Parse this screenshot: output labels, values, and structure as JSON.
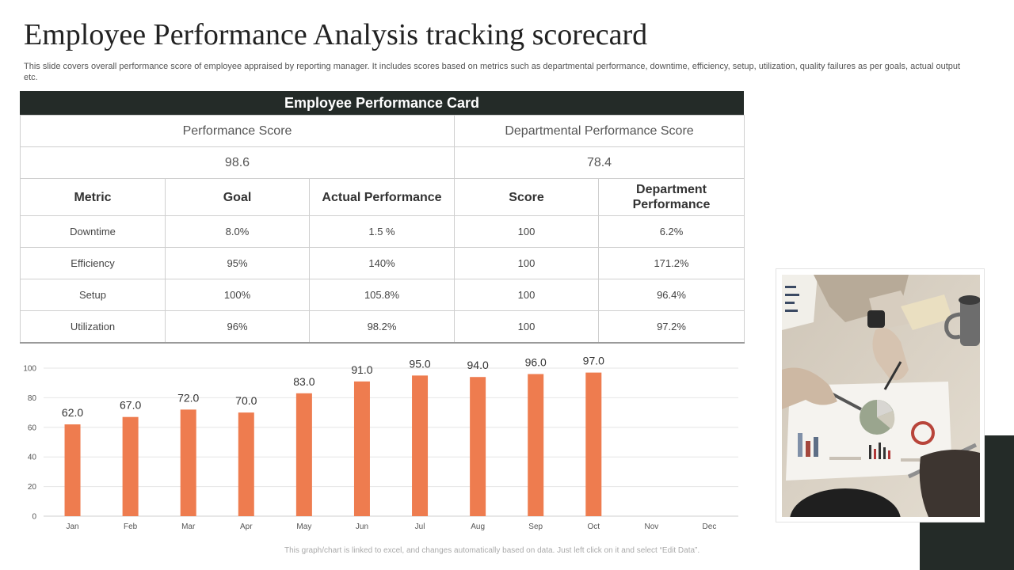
{
  "page": {
    "title": "Employee Performance Analysis tracking scorecard",
    "subtitle": "This slide covers overall performance score of employee appraised by reporting manager. It includes scores based on metrics such as  departmental performance, downtime, efficiency, setup, utilization, quality failures as per goals, actual output etc.",
    "footnote": "This graph/chart is linked to excel, and changes automatically based on data. Just left click on it and select “Edit Data”."
  },
  "card": {
    "header": "Employee Performance Card",
    "performance_score_label": "Performance Score",
    "departmental_score_label": "Departmental Performance Score",
    "performance_score_value": "98.6",
    "departmental_score_value": "78.4",
    "columns": [
      "Metric",
      "Goal",
      "Actual Performance",
      "Score",
      "Department Performance"
    ],
    "rows": [
      [
        "Downtime",
        "8.0%",
        "1.5 %",
        "100",
        "6.2%"
      ],
      [
        "Efficiency",
        "95%",
        "140%",
        "100",
        "171.2%"
      ],
      [
        "Setup",
        "100%",
        "105.8%",
        "100",
        "96.4%"
      ],
      [
        "Utilization",
        "96%",
        "98.2%",
        "100",
        "97.2%"
      ]
    ]
  },
  "colors": {
    "bar": "#ee7c4f",
    "header_bg": "#242b28",
    "grid": "#e6e6e6"
  },
  "chart_data": {
    "type": "bar",
    "categories": [
      "Jan",
      "Feb",
      "Mar",
      "Apr",
      "May",
      "Jun",
      "Jul",
      "Aug",
      "Sep",
      "Oct",
      "Nov",
      "Dec"
    ],
    "values": [
      62.0,
      67.0,
      72.0,
      70.0,
      83.0,
      91.0,
      95.0,
      94.0,
      96.0,
      97.0,
      null,
      null
    ],
    "data_labels": [
      "62.0",
      "67.0",
      "72.0",
      "70.0",
      "83.0",
      "91.0",
      "95.0",
      "94.0",
      "96.0",
      "97.0",
      "",
      ""
    ],
    "yticks": [
      "0",
      "20",
      "40",
      "60",
      "80",
      "100"
    ],
    "ylim": [
      0,
      100
    ],
    "grid": true,
    "title": "",
    "xlabel": "",
    "ylabel": ""
  },
  "image": {
    "icon": "business-meeting-photo"
  }
}
